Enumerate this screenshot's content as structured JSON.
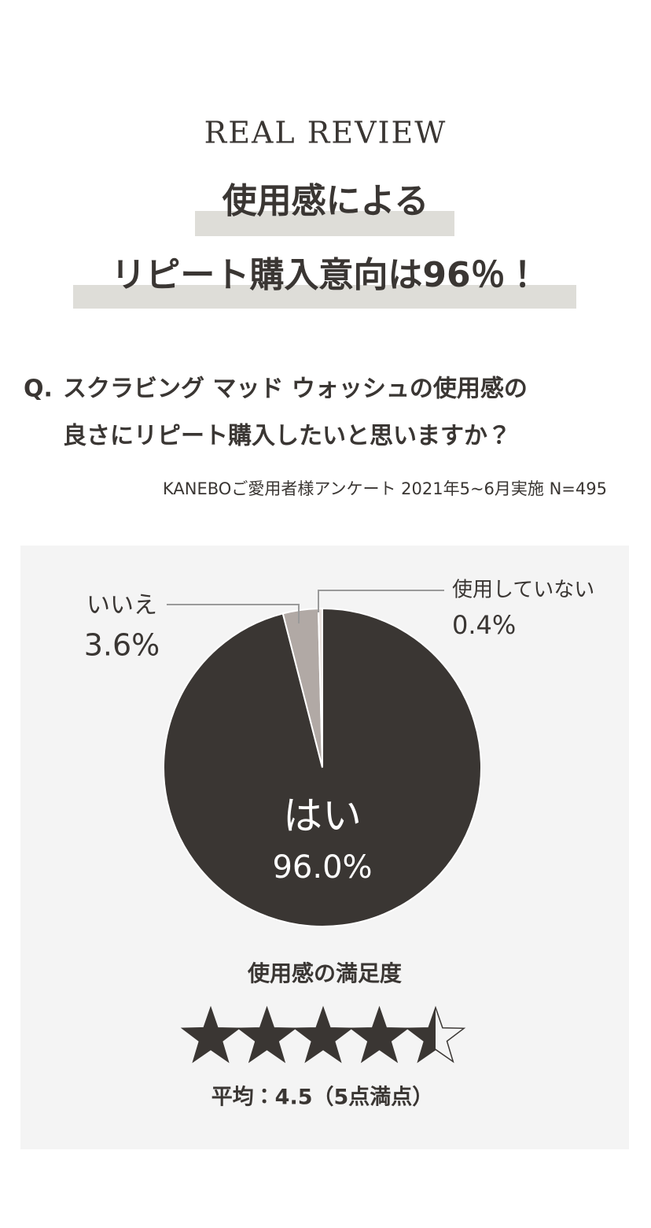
{
  "header": {
    "eyebrow": "REAL REVIEW",
    "headline": [
      "使用感による",
      "リピート購入意向は96％！"
    ]
  },
  "question": {
    "label": "Q.",
    "lines": [
      "スクラビング マッド ウォッシュの使用感の",
      "良さにリピート購入したいと思いますか？"
    ],
    "note": "KANEBOご愛用者様アンケート 2021年5~6月実施 N=495"
  },
  "chart_data": {
    "type": "pie",
    "categories": [
      "はい",
      "いいえ",
      "使用していない"
    ],
    "values": [
      96.0,
      3.6,
      0.4
    ],
    "value_labels": [
      "96.0%",
      "3.6%",
      "0.4%"
    ],
    "colors": [
      "#3a3633",
      "#b1a9a5",
      "#e9e1dd"
    ]
  },
  "rating": {
    "title": "使用感の満足度",
    "value": 4.5,
    "max": 5,
    "label": "平均：4.5（5点満点）"
  }
}
